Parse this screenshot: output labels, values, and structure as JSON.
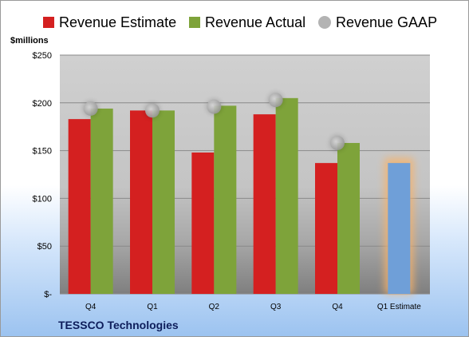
{
  "chart_data": {
    "type": "bar",
    "categories": [
      "Q4",
      "Q1",
      "Q2",
      "Q3",
      "Q4",
      "Q1 Estimate"
    ],
    "series": [
      {
        "name": "Revenue Estimate",
        "color": "#d42020",
        "values": [
          183,
          192,
          148,
          188,
          137,
          null
        ]
      },
      {
        "name": "Revenue Actual",
        "color": "#7ea33a",
        "values": [
          194,
          192,
          197,
          205,
          158,
          null
        ]
      },
      {
        "name": "Revenue GAAP",
        "color": "#a8a8a8",
        "values": [
          194,
          192,
          196,
          203,
          158,
          null
        ]
      }
    ],
    "projection": {
      "category": "Q1 Estimate",
      "value": 137,
      "color": "#6f9fd8",
      "glow_color": "#f6b26b"
    },
    "ylabel": "$millions",
    "yticks": [
      0,
      50,
      100,
      150,
      200,
      250
    ],
    "ytick_labels": [
      "$-",
      "$50",
      "$100",
      "$150",
      "$200",
      "$250"
    ],
    "ylim": [
      0,
      250
    ],
    "grid": true,
    "legend_position": "top"
  },
  "footer": {
    "company": "TESSCO Technologies"
  }
}
